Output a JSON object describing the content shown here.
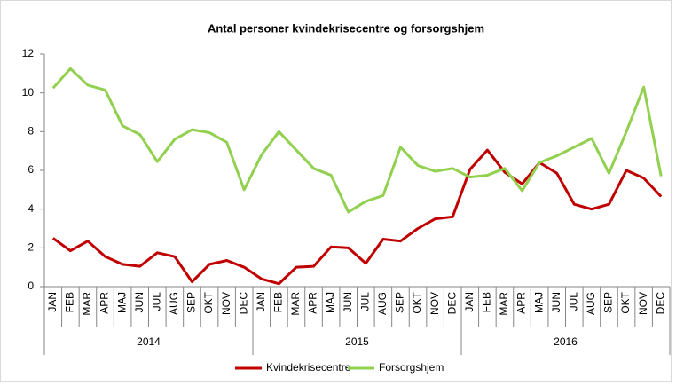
{
  "chart_data": {
    "type": "line",
    "title": "Antal personer kvindekrisecentre og forsorgshjem",
    "categories": [
      "JAN",
      "FEB",
      "MAR",
      "APR",
      "MAJ",
      "JUN",
      "JUL",
      "AUG",
      "SEP",
      "OKT",
      "NOV",
      "DEC",
      "JAN",
      "FEB",
      "MAR",
      "APR",
      "MAJ",
      "JUN",
      "JUL",
      "AUG",
      "SEP",
      "OKT",
      "NOV",
      "DEC",
      "JAN",
      "FEB",
      "MAR",
      "APR",
      "MAJ",
      "JUN",
      "JUL",
      "AUG",
      "SEP",
      "OKT",
      "NOV",
      "DEC"
    ],
    "groups": [
      "2014",
      "2015",
      "2016"
    ],
    "series": [
      {
        "name": "Kvindekrisecentre",
        "color": "#c00000",
        "values": [
          2.5,
          1.85,
          2.35,
          1.55,
          1.15,
          1.05,
          1.75,
          1.55,
          0.25,
          1.15,
          1.35,
          1.0,
          0.4,
          0.15,
          1.0,
          1.05,
          2.05,
          2.0,
          1.2,
          2.45,
          2.35,
          3.0,
          3.5,
          3.6,
          6.05,
          7.05,
          5.9,
          5.3,
          6.4,
          5.85,
          4.25,
          4.0,
          4.25,
          6.0,
          5.6,
          4.65
        ]
      },
      {
        "name": "Forsorgshjem",
        "color": "#92d050",
        "values": [
          10.25,
          11.25,
          10.4,
          10.15,
          8.3,
          7.85,
          6.45,
          7.6,
          8.1,
          7.95,
          7.45,
          5.0,
          6.8,
          8.0,
          7.05,
          6.1,
          5.75,
          3.85,
          4.4,
          4.7,
          7.2,
          6.25,
          5.95,
          6.1,
          5.65,
          5.75,
          6.1,
          4.95,
          6.4,
          6.75,
          7.2,
          7.65,
          5.85,
          8.0,
          10.3,
          5.7
        ]
      }
    ],
    "ylim": [
      0,
      12
    ],
    "yticks": [
      0,
      2,
      4,
      6,
      8,
      10,
      12
    ],
    "grid": false
  }
}
